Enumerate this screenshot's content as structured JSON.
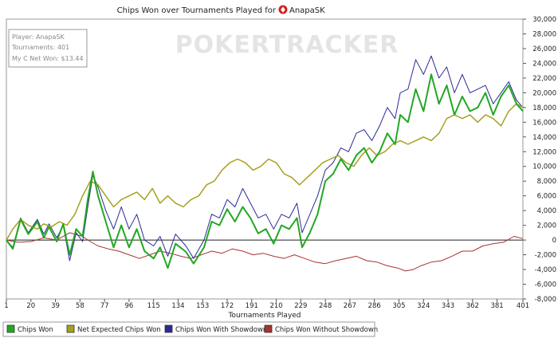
{
  "chart_data": {
    "type": "line",
    "title": "Chips Won over Tournaments Played for AnapaSK",
    "xlabel": "Tournaments Played",
    "ylabel": "",
    "xlim": [
      1,
      401
    ],
    "ylim": [
      -8000,
      30000
    ],
    "x_ticks": [
      "1",
      "20",
      "39",
      "58",
      "77",
      "96",
      "115",
      "134",
      "153",
      "172",
      "191",
      "210",
      "229",
      "248",
      "267",
      "286",
      "305",
      "324",
      "343",
      "362",
      "381",
      "401"
    ],
    "y_ticks": [
      "30,000",
      "28,000",
      "26,000",
      "24,000",
      "22,000",
      "20,000",
      "18,000",
      "16,000",
      "14,000",
      "12,000",
      "10,000",
      "8,000",
      "6,000",
      "4,000",
      "2,000",
      "0",
      "-2,000",
      "-4,000",
      "-6,000",
      "-8,000"
    ],
    "watermark": "POKERTRACKER",
    "info_box": {
      "player": "Player: AnapaSK",
      "tournaments": "Tournaments: 401",
      "net_won": "My C Net Won: $13.44"
    },
    "series": [
      {
        "name": "Chips Won",
        "color": "#22a822",
        "stroke_width": 2,
        "x": [
          1,
          6,
          12,
          18,
          25,
          30,
          34,
          40,
          45,
          50,
          55,
          60,
          64,
          68,
          72,
          78,
          84,
          90,
          96,
          102,
          108,
          115,
          120,
          126,
          132,
          140,
          146,
          154,
          160,
          166,
          172,
          178,
          184,
          190,
          196,
          202,
          208,
          214,
          220,
          226,
          230,
          236,
          242,
          248,
          254,
          260,
          266,
          272,
          278,
          284,
          290,
          296,
          302,
          306,
          312,
          318,
          324,
          330,
          336,
          342,
          348,
          354,
          360,
          366,
          372,
          378,
          384,
          390,
          396,
          401
        ],
        "values": [
          0,
          -1200,
          2800,
          800,
          2500,
          300,
          1800,
          -200,
          2200,
          -2000,
          1500,
          500,
          5500,
          9300,
          6000,
          2500,
          -1000,
          2000,
          -1000,
          1500,
          -1500,
          -2500,
          -1000,
          -3800,
          -500,
          -1600,
          -3200,
          -1000,
          2500,
          2000,
          4200,
          2500,
          4500,
          3000,
          900,
          1500,
          -500,
          2000,
          1500,
          3000,
          -1000,
          1000,
          3500,
          8000,
          9000,
          11000,
          9500,
          11500,
          12500,
          10500,
          12000,
          14500,
          13000,
          17000,
          16000,
          20500,
          17500,
          22500,
          18500,
          21000,
          17000,
          19500,
          17500,
          18000,
          20000,
          17000,
          19500,
          21000,
          18500,
          17500
        ]
      },
      {
        "name": "Net Expected Chips Won",
        "color": "#a8a020",
        "stroke_width": 1.5,
        "x": [
          1,
          6,
          12,
          18,
          25,
          30,
          36,
          42,
          48,
          54,
          60,
          66,
          72,
          78,
          84,
          90,
          96,
          102,
          108,
          114,
          120,
          126,
          132,
          138,
          144,
          150,
          156,
          162,
          168,
          174,
          180,
          186,
          192,
          198,
          204,
          210,
          216,
          222,
          228,
          234,
          240,
          246,
          252,
          258,
          264,
          270,
          276,
          282,
          288,
          294,
          300,
          306,
          312,
          318,
          324,
          330,
          336,
          342,
          348,
          354,
          360,
          366,
          372,
          378,
          384,
          390,
          396,
          401
        ],
        "values": [
          0,
          1500,
          2800,
          2000,
          1500,
          2200,
          1800,
          2500,
          2000,
          3500,
          6000,
          8000,
          7500,
          6000,
          4500,
          5500,
          6000,
          6500,
          5500,
          7000,
          5000,
          6000,
          5000,
          4500,
          5500,
          6000,
          7500,
          8000,
          9500,
          10500,
          11000,
          10500,
          9500,
          10000,
          11000,
          10500,
          9000,
          8500,
          7500,
          8500,
          9500,
          10500,
          11000,
          11500,
          10500,
          10000,
          11500,
          12500,
          11500,
          12000,
          13000,
          13500,
          13000,
          13500,
          14000,
          13500,
          14500,
          16500,
          17000,
          16500,
          17000,
          16000,
          17000,
          16500,
          15500,
          17500,
          18500,
          18000
        ]
      },
      {
        "name": "Chips Won With Showdown",
        "color": "#2a2a96",
        "stroke_width": 1,
        "x": [
          1,
          6,
          12,
          18,
          25,
          30,
          34,
          40,
          45,
          50,
          55,
          60,
          64,
          68,
          72,
          78,
          84,
          90,
          96,
          102,
          108,
          115,
          120,
          126,
          132,
          140,
          146,
          154,
          160,
          166,
          172,
          178,
          184,
          190,
          196,
          202,
          208,
          214,
          220,
          226,
          230,
          236,
          242,
          248,
          254,
          260,
          266,
          272,
          278,
          284,
          290,
          296,
          302,
          306,
          312,
          318,
          324,
          330,
          336,
          342,
          348,
          354,
          360,
          366,
          372,
          378,
          384,
          390,
          396,
          401
        ],
        "values": [
          0,
          -1000,
          3000,
          1000,
          2800,
          800,
          2200,
          300,
          2000,
          -2800,
          1000,
          -200,
          4500,
          8800,
          7200,
          4000,
          1500,
          4500,
          1500,
          3500,
          0,
          -800,
          500,
          -2200,
          800,
          -800,
          -2500,
          0,
          3500,
          3000,
          5500,
          4500,
          7000,
          5000,
          3000,
          3500,
          1500,
          3500,
          3000,
          5000,
          1000,
          3500,
          6000,
          9500,
          10500,
          12500,
          12000,
          14500,
          15000,
          13500,
          15500,
          18000,
          16500,
          20000,
          20500,
          24500,
          22500,
          25000,
          22000,
          23500,
          20000,
          22500,
          20000,
          20500,
          21000,
          18500,
          20000,
          21500,
          19000,
          18000
        ]
      },
      {
        "name": "Chips Won Without Showdown",
        "color": "#a83232",
        "stroke_width": 1,
        "x": [
          1,
          10,
          20,
          30,
          40,
          50,
          60,
          66,
          72,
          80,
          88,
          96,
          104,
          112,
          120,
          128,
          136,
          144,
          152,
          160,
          168,
          176,
          184,
          192,
          200,
          208,
          216,
          224,
          232,
          240,
          248,
          256,
          264,
          272,
          280,
          288,
          296,
          304,
          310,
          316,
          322,
          330,
          338,
          346,
          354,
          362,
          370,
          378,
          386,
          394,
          401
        ],
        "values": [
          0,
          -300,
          -200,
          300,
          0,
          1000,
          500,
          -200,
          -800,
          -1200,
          -1500,
          -2000,
          -2500,
          -2000,
          -1500,
          -1800,
          -2200,
          -2500,
          -2000,
          -1500,
          -1800,
          -1200,
          -1500,
          -2000,
          -1800,
          -2200,
          -2500,
          -2000,
          -2500,
          -3000,
          -3200,
          -2800,
          -2500,
          -2200,
          -2800,
          -3000,
          -3500,
          -3800,
          -4200,
          -4000,
          -3500,
          -3000,
          -2800,
          -2200,
          -1500,
          -1500,
          -800,
          -500,
          -300,
          500,
          200
        ]
      }
    ]
  }
}
